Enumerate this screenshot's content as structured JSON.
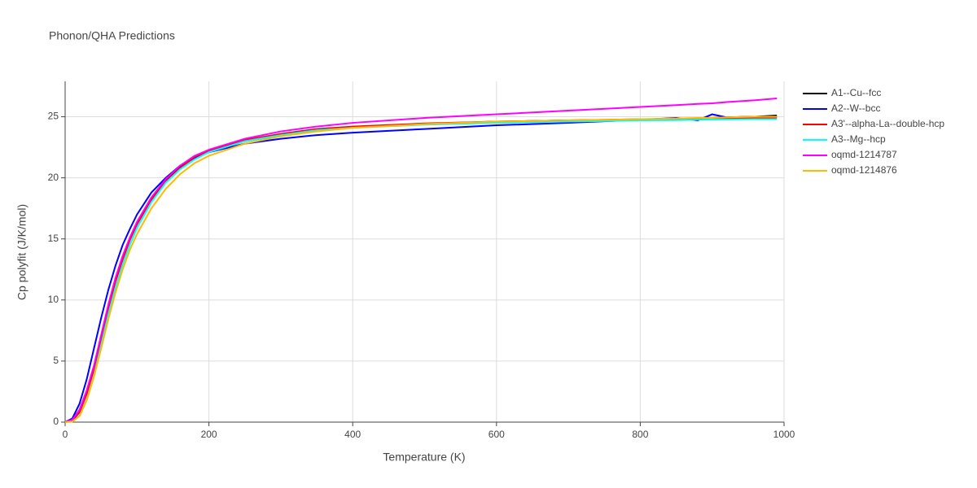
{
  "chart_data": {
    "type": "line",
    "title": "Phonon/QHA Predictions",
    "x_label": "Temperature (K)",
    "y_label": "Cp polyfit (J/K/mol)",
    "xlim": [
      0,
      1000
    ],
    "ylim": [
      0,
      27.9
    ],
    "xticks": [
      0,
      200,
      400,
      600,
      800,
      1000
    ],
    "yticks": [
      0,
      5,
      10,
      15,
      20,
      25
    ],
    "grid": true,
    "x": [
      0,
      10,
      20,
      30,
      40,
      50,
      60,
      70,
      80,
      90,
      100,
      120,
      140,
      160,
      180,
      200,
      250,
      300,
      350,
      400,
      500,
      600,
      700,
      800,
      850,
      880,
      900,
      920,
      960,
      990
    ],
    "series": [
      {
        "name": "A1--Cu--fcc",
        "color": "#000000",
        "values": [
          0,
          0.2,
          1.0,
          2.5,
          4.5,
          7.0,
          9.5,
          11.7,
          13.5,
          15.0,
          16.3,
          18.3,
          19.8,
          20.9,
          21.7,
          22.2,
          23.0,
          23.5,
          23.9,
          24.15,
          24.4,
          24.6,
          24.7,
          24.75,
          24.8,
          24.85,
          24.9,
          24.95,
          25.0,
          25.1
        ]
      },
      {
        "name": "A2--W--bcc",
        "color": "#0000ff",
        "values": [
          0,
          0.3,
          1.5,
          3.5,
          6.0,
          8.5,
          10.8,
          12.8,
          14.5,
          15.8,
          17.0,
          18.8,
          20.0,
          21.0,
          21.6,
          22.1,
          22.8,
          23.2,
          23.5,
          23.7,
          24.0,
          24.3,
          24.5,
          24.75,
          24.9,
          24.7,
          25.2,
          24.95,
          25.0,
          25.0
        ]
      },
      {
        "name": "A3'--alpha-La--double-hcp",
        "color": "#ff0000",
        "values": [
          0,
          0.1,
          0.8,
          2.3,
          4.3,
          6.8,
          9.3,
          11.5,
          13.3,
          14.9,
          16.2,
          18.2,
          19.7,
          20.8,
          21.7,
          22.2,
          23.1,
          23.6,
          24.0,
          24.2,
          24.45,
          24.6,
          24.7,
          24.8,
          24.8,
          24.85,
          24.85,
          24.9,
          24.9,
          24.9
        ]
      },
      {
        "name": "A3--Mg--hcp",
        "color": "#00ffff",
        "values": [
          0,
          0.05,
          0.5,
          1.8,
          3.8,
          6.3,
          8.8,
          11.0,
          12.9,
          14.5,
          15.9,
          18.0,
          19.6,
          20.7,
          21.5,
          22.1,
          23.0,
          23.5,
          23.9,
          24.1,
          24.35,
          24.5,
          24.6,
          24.7,
          24.72,
          24.75,
          24.77,
          24.78,
          24.8,
          24.8
        ]
      },
      {
        "name": "oqmd-1214787",
        "color": "#ff00ff",
        "values": [
          0,
          0.2,
          1.0,
          2.6,
          4.6,
          7.1,
          9.6,
          11.8,
          13.6,
          15.1,
          16.4,
          18.4,
          19.9,
          21.0,
          21.8,
          22.3,
          23.2,
          23.8,
          24.2,
          24.5,
          24.9,
          25.2,
          25.5,
          25.8,
          25.95,
          26.05,
          26.1,
          26.2,
          26.35,
          26.5
        ]
      },
      {
        "name": "oqmd-1214876",
        "color": "#ffb900",
        "values": [
          0,
          0.05,
          0.5,
          1.8,
          3.7,
          6.0,
          8.4,
          10.6,
          12.5,
          14.1,
          15.4,
          17.5,
          19.1,
          20.3,
          21.2,
          21.8,
          22.8,
          23.4,
          23.8,
          24.1,
          24.4,
          24.6,
          24.7,
          24.8,
          24.85,
          24.9,
          24.9,
          24.95,
          25.0,
          25.0
        ]
      }
    ]
  }
}
